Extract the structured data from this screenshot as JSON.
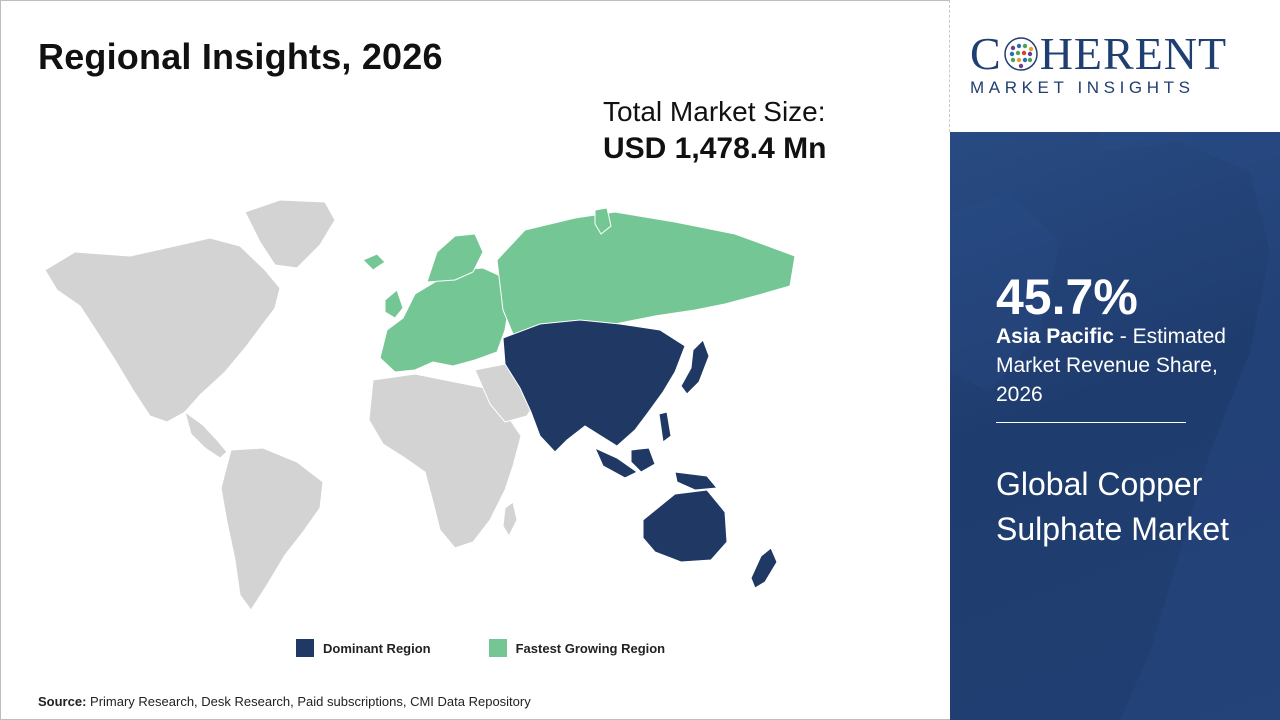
{
  "header": {
    "title": "Regional Insights, 2026"
  },
  "market_size": {
    "label": "Total Market Size:",
    "value": "USD 1,478.4 Mn"
  },
  "map": {
    "colors": {
      "base": "#d3d3d3",
      "dominant": "#1f3864",
      "fastest_growing": "#74c794",
      "borders": "#ffffff"
    },
    "dominant_region": "Asia Pacific",
    "fastest_growing_region": "Europe"
  },
  "legend": {
    "items": [
      {
        "label": "Dominant Region",
        "color": "#1f3864"
      },
      {
        "label": "Fastest Growing Region",
        "color": "#74c794"
      }
    ]
  },
  "source": {
    "label": "Source:",
    "text": " Primary Research, Desk Research, Paid subscriptions, CMI Data Repository"
  },
  "logo": {
    "brand_left": "C",
    "brand_right": "HERENT",
    "tagline": "MARKET INSIGHTS"
  },
  "highlight": {
    "share": "45.7%",
    "region": "Asia Pacific",
    "description": " - Estimated Market Revenue Share, 2026",
    "market_name": "Global Copper Sulphate Market"
  }
}
